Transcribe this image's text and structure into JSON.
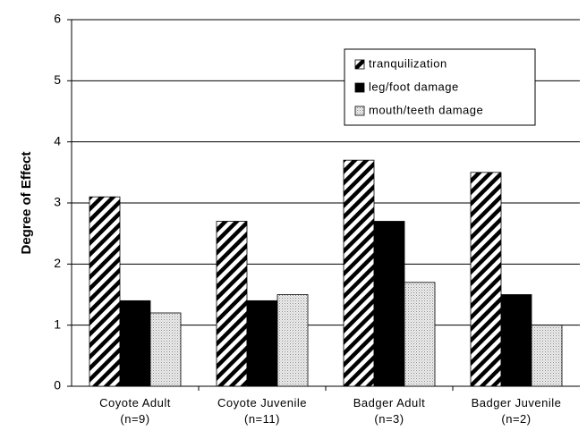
{
  "chart_data": {
    "type": "bar",
    "y_label": "Degree of Effect",
    "categories": [
      "Coyote Adult\n(n=9)",
      "Coyote Juvenile\n(n=11)",
      "Badger Adult\n(n=3)",
      "Badger Juvenile\n(n=2)"
    ],
    "series": [
      {
        "name": "tranquilization",
        "color": "#000000",
        "pattern": "hatch",
        "values": [
          3.1,
          2.7,
          3.7,
          3.5
        ]
      },
      {
        "name": "leg/foot damage",
        "color": "#000000",
        "pattern": "solid",
        "values": [
          1.4,
          1.4,
          2.7,
          1.5
        ]
      },
      {
        "name": "mouth/teeth damage",
        "color": "#bbbbbb",
        "pattern": "dots",
        "values": [
          1.2,
          1.5,
          1.7,
          1.0
        ]
      }
    ],
    "ylim": [
      0,
      6
    ],
    "yticks": [
      0,
      1,
      2,
      3,
      4,
      5,
      6
    ],
    "grid": true,
    "legend": "upper right"
  }
}
